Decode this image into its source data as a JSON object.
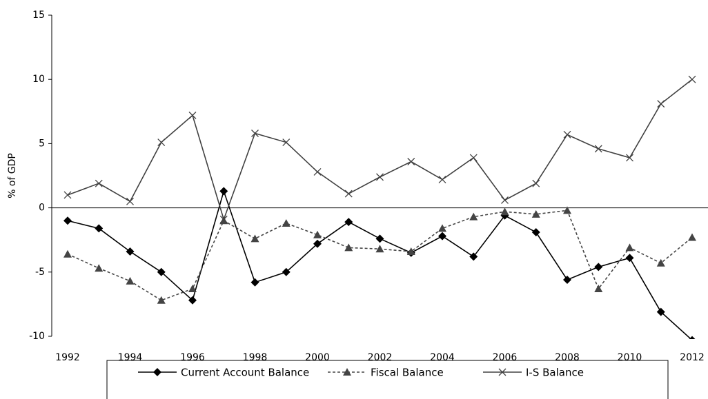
{
  "chart_data": {
    "type": "line",
    "y_label": "% of GDP",
    "categories": [
      "1992",
      null,
      "1994",
      null,
      "1996",
      null,
      "1998",
      null,
      "2000",
      null,
      "2002",
      null,
      "2004",
      null,
      "2006",
      null,
      "2008",
      null,
      "2010",
      null,
      "2012"
    ],
    "series": [
      {
        "name": "Current Account Balance",
        "color": "#000000",
        "marker": "diamond",
        "dash": false,
        "values": [
          -1.0,
          -1.6,
          -3.4,
          -5.0,
          -7.2,
          1.3,
          -5.8,
          -5.0,
          -2.8,
          -1.1,
          -2.4,
          -3.5,
          -2.2,
          -3.8,
          -0.6,
          -1.9,
          -5.6,
          -4.6,
          -3.9,
          -8.1,
          -10.3
        ]
      },
      {
        "name": "Fiscal Balance",
        "color": "#444444",
        "marker": "triangle",
        "dash": true,
        "values": [
          -3.6,
          -4.7,
          -5.7,
          -7.2,
          -6.3,
          -1.0,
          -2.4,
          -1.2,
          -2.1,
          -3.1,
          -3.2,
          -3.4,
          -1.6,
          -0.7,
          -0.3,
          -0.5,
          -0.2,
          -6.3,
          -3.1,
          -4.3,
          -2.3
        ]
      },
      {
        "name": "I-S Balance",
        "color": "#404040",
        "marker": "x",
        "dash": false,
        "values": [
          1.0,
          1.9,
          0.5,
          5.1,
          7.2,
          -0.9,
          5.8,
          5.1,
          2.8,
          1.1,
          2.4,
          3.6,
          2.2,
          3.9,
          0.6,
          1.9,
          5.7,
          4.6,
          3.9,
          8.1,
          10.0
        ]
      }
    ],
    "ylim": [
      -10,
      15
    ],
    "yticks": [
      -10,
      -5,
      0,
      5,
      10,
      15
    ],
    "grid": false,
    "legend": "bottom"
  }
}
